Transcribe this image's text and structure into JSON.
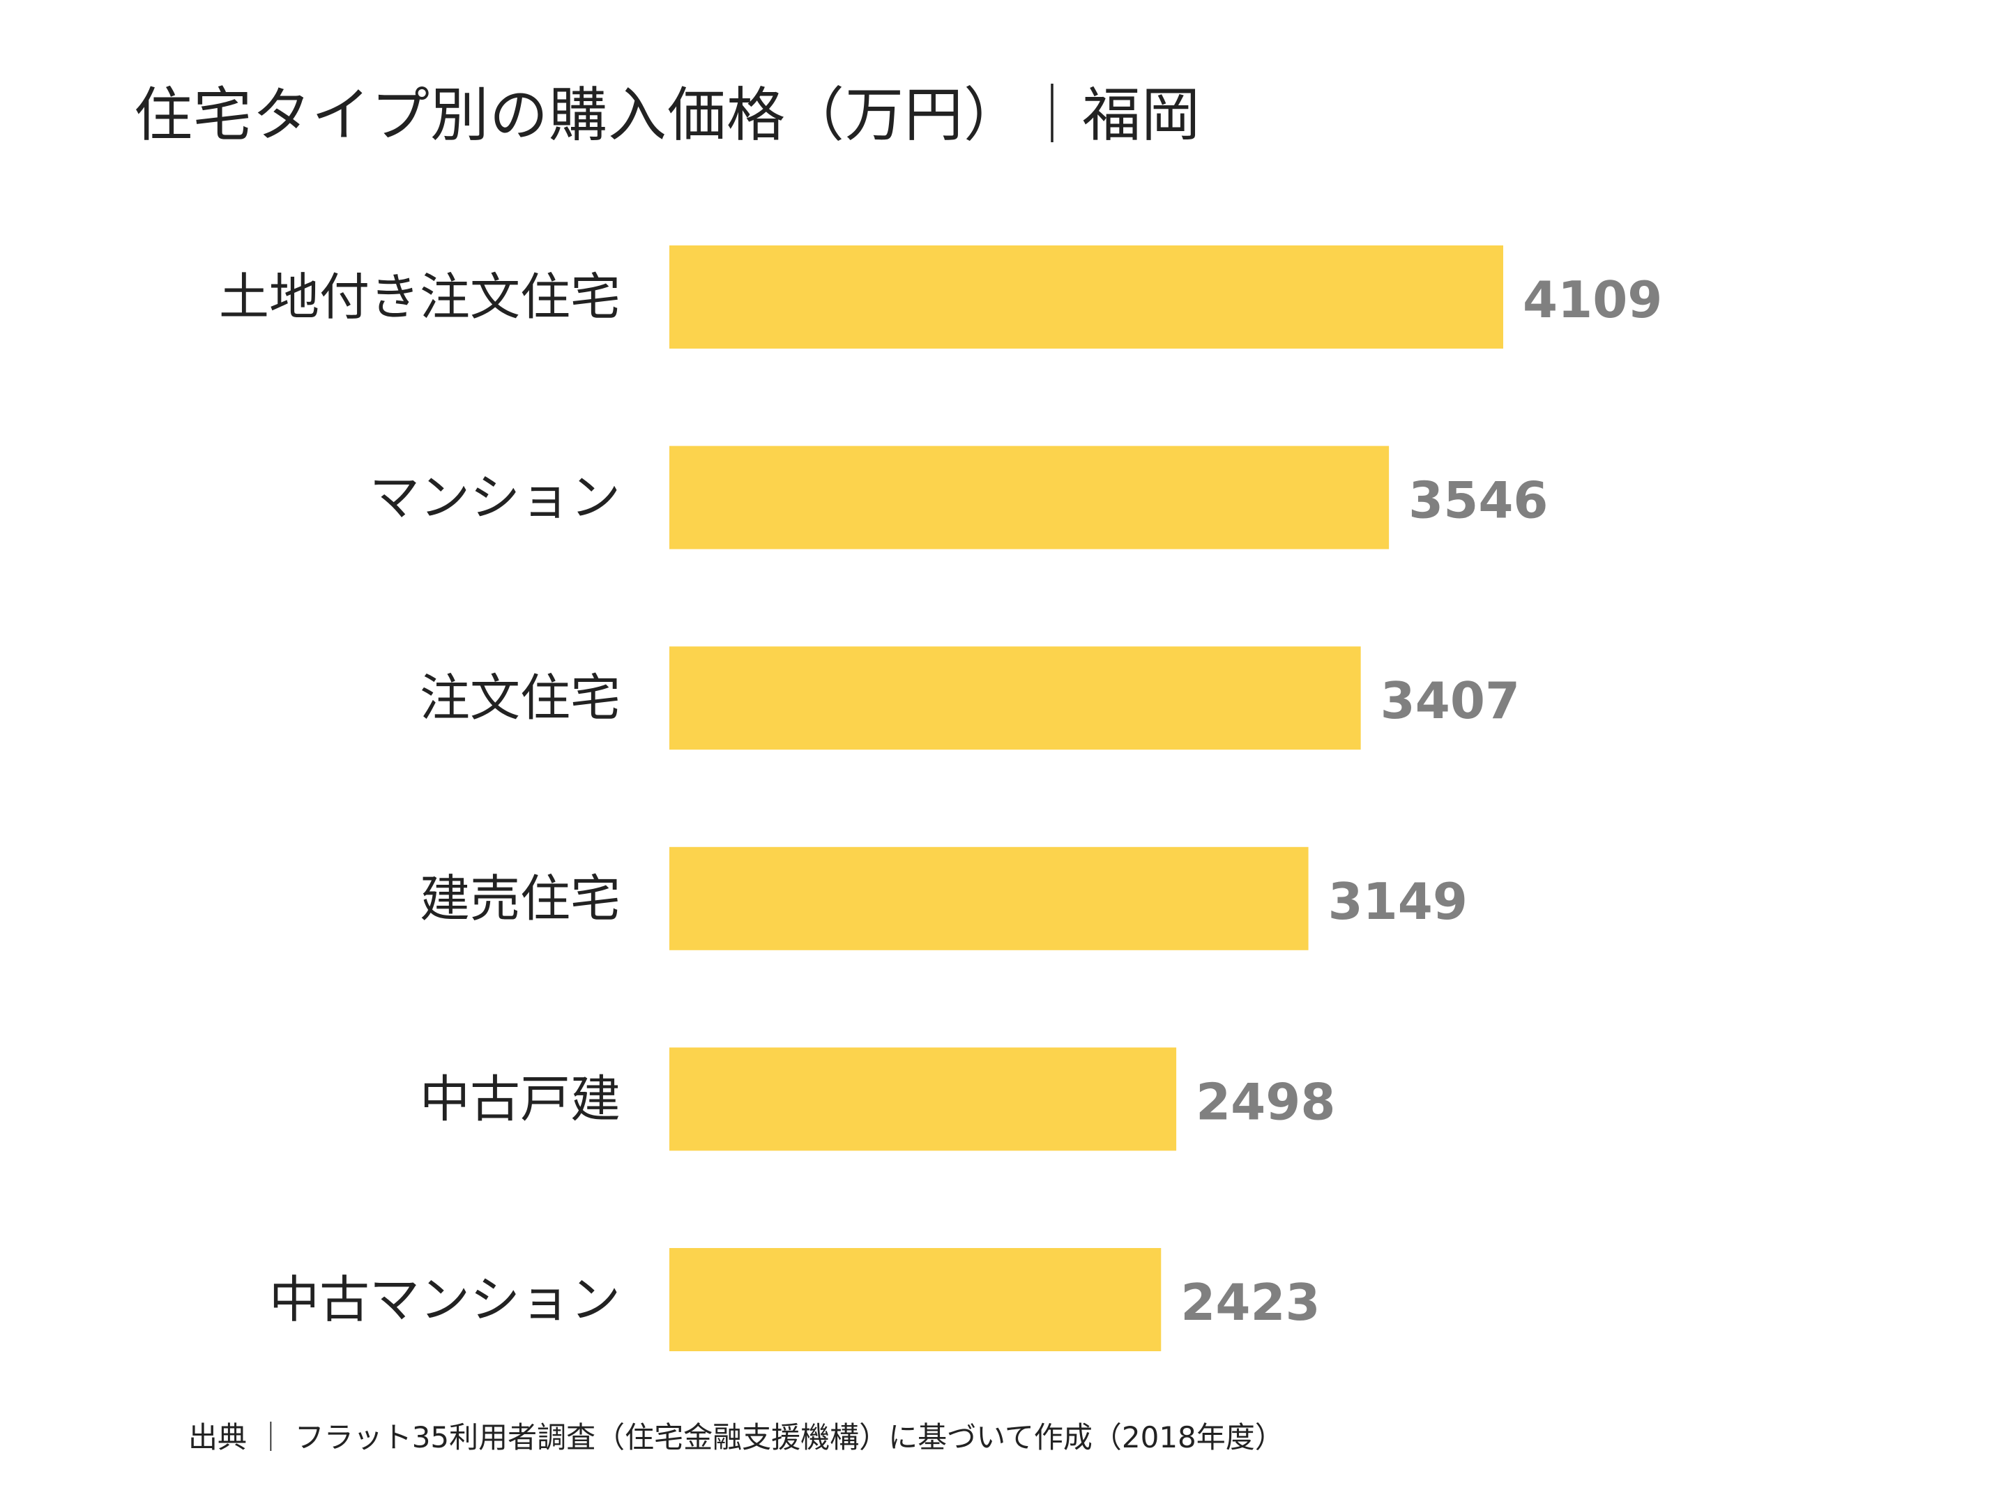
{
  "chart_data": {
    "type": "bar",
    "orientation": "horizontal",
    "title": "住宅タイプ別の購入価格（万円）｜福岡",
    "categories": [
      "土地付き注文住宅",
      "マンション",
      "注文住宅",
      "建売住宅",
      "中古戸建",
      "中古マンション"
    ],
    "values": [
      4109,
      3546,
      3407,
      3149,
      2498,
      2423
    ],
    "xlabel": "",
    "ylabel": "",
    "xlim": [
      0,
      4109
    ],
    "grid": false,
    "legend": "none",
    "bar_color": "#FCD34D",
    "value_label_color": "#808080"
  },
  "source_note": "出典 ｜ フラット35利用者調査（住宅金融支援機構）に基づいて作成（2018年度）"
}
